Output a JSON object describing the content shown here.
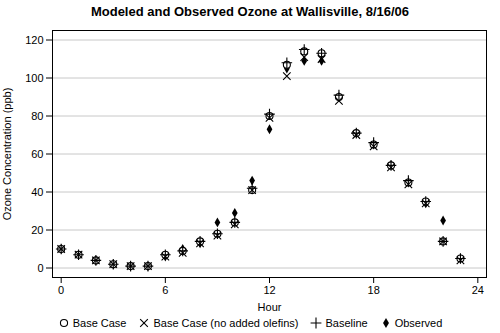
{
  "chart_data": {
    "type": "scatter",
    "title": "Modeled and Observed Ozone at Wallisville, 8/16/06",
    "xlabel": "Hour",
    "ylabel": "Ozone Concentration (ppb)",
    "x": [
      0,
      1,
      2,
      3,
      4,
      5,
      6,
      7,
      8,
      9,
      10,
      11,
      12,
      13,
      14,
      15,
      16,
      17,
      18,
      19,
      20,
      21,
      22,
      23
    ],
    "series": [
      {
        "name": "Base Case",
        "color": "#000000",
        "marker": "circle",
        "values": [
          10,
          7,
          4,
          2,
          1,
          1,
          7,
          9,
          14,
          18,
          24,
          41,
          80,
          107,
          114,
          113,
          90,
          71,
          65,
          54,
          45,
          35,
          14,
          5
        ]
      },
      {
        "name": "Base Case (no added olefins)",
        "color": "#000000",
        "marker": "x",
        "values": [
          10,
          7,
          4,
          2,
          1,
          1,
          6,
          8,
          13,
          17,
          23,
          41,
          79,
          101,
          111,
          110,
          88,
          70,
          64,
          53,
          44,
          34,
          14,
          4
        ]
      },
      {
        "name": "Baseline",
        "color": "#000000",
        "marker": "plus",
        "values": [
          10,
          7,
          4,
          2,
          1,
          1,
          7,
          9,
          14,
          18,
          24,
          42,
          81,
          108,
          115,
          113,
          91,
          71,
          66,
          54,
          46,
          35,
          14,
          5
        ]
      },
      {
        "name": "Observed",
        "color": "#000000",
        "marker": "diamond",
        "values": [
          10,
          7,
          4,
          2,
          1,
          1,
          6,
          10,
          13,
          24,
          29,
          46,
          73,
          105,
          109,
          109,
          90,
          71,
          65,
          54,
          45,
          34,
          25,
          5
        ]
      }
    ],
    "xlim": [
      -0.5,
      24.5
    ],
    "ylim": [
      -5,
      125
    ],
    "xticks": [
      0,
      6,
      12,
      18,
      24
    ],
    "yticks": [
      0,
      20,
      40,
      60,
      80,
      100,
      120
    ],
    "grid": "y",
    "legend": "bottom"
  }
}
